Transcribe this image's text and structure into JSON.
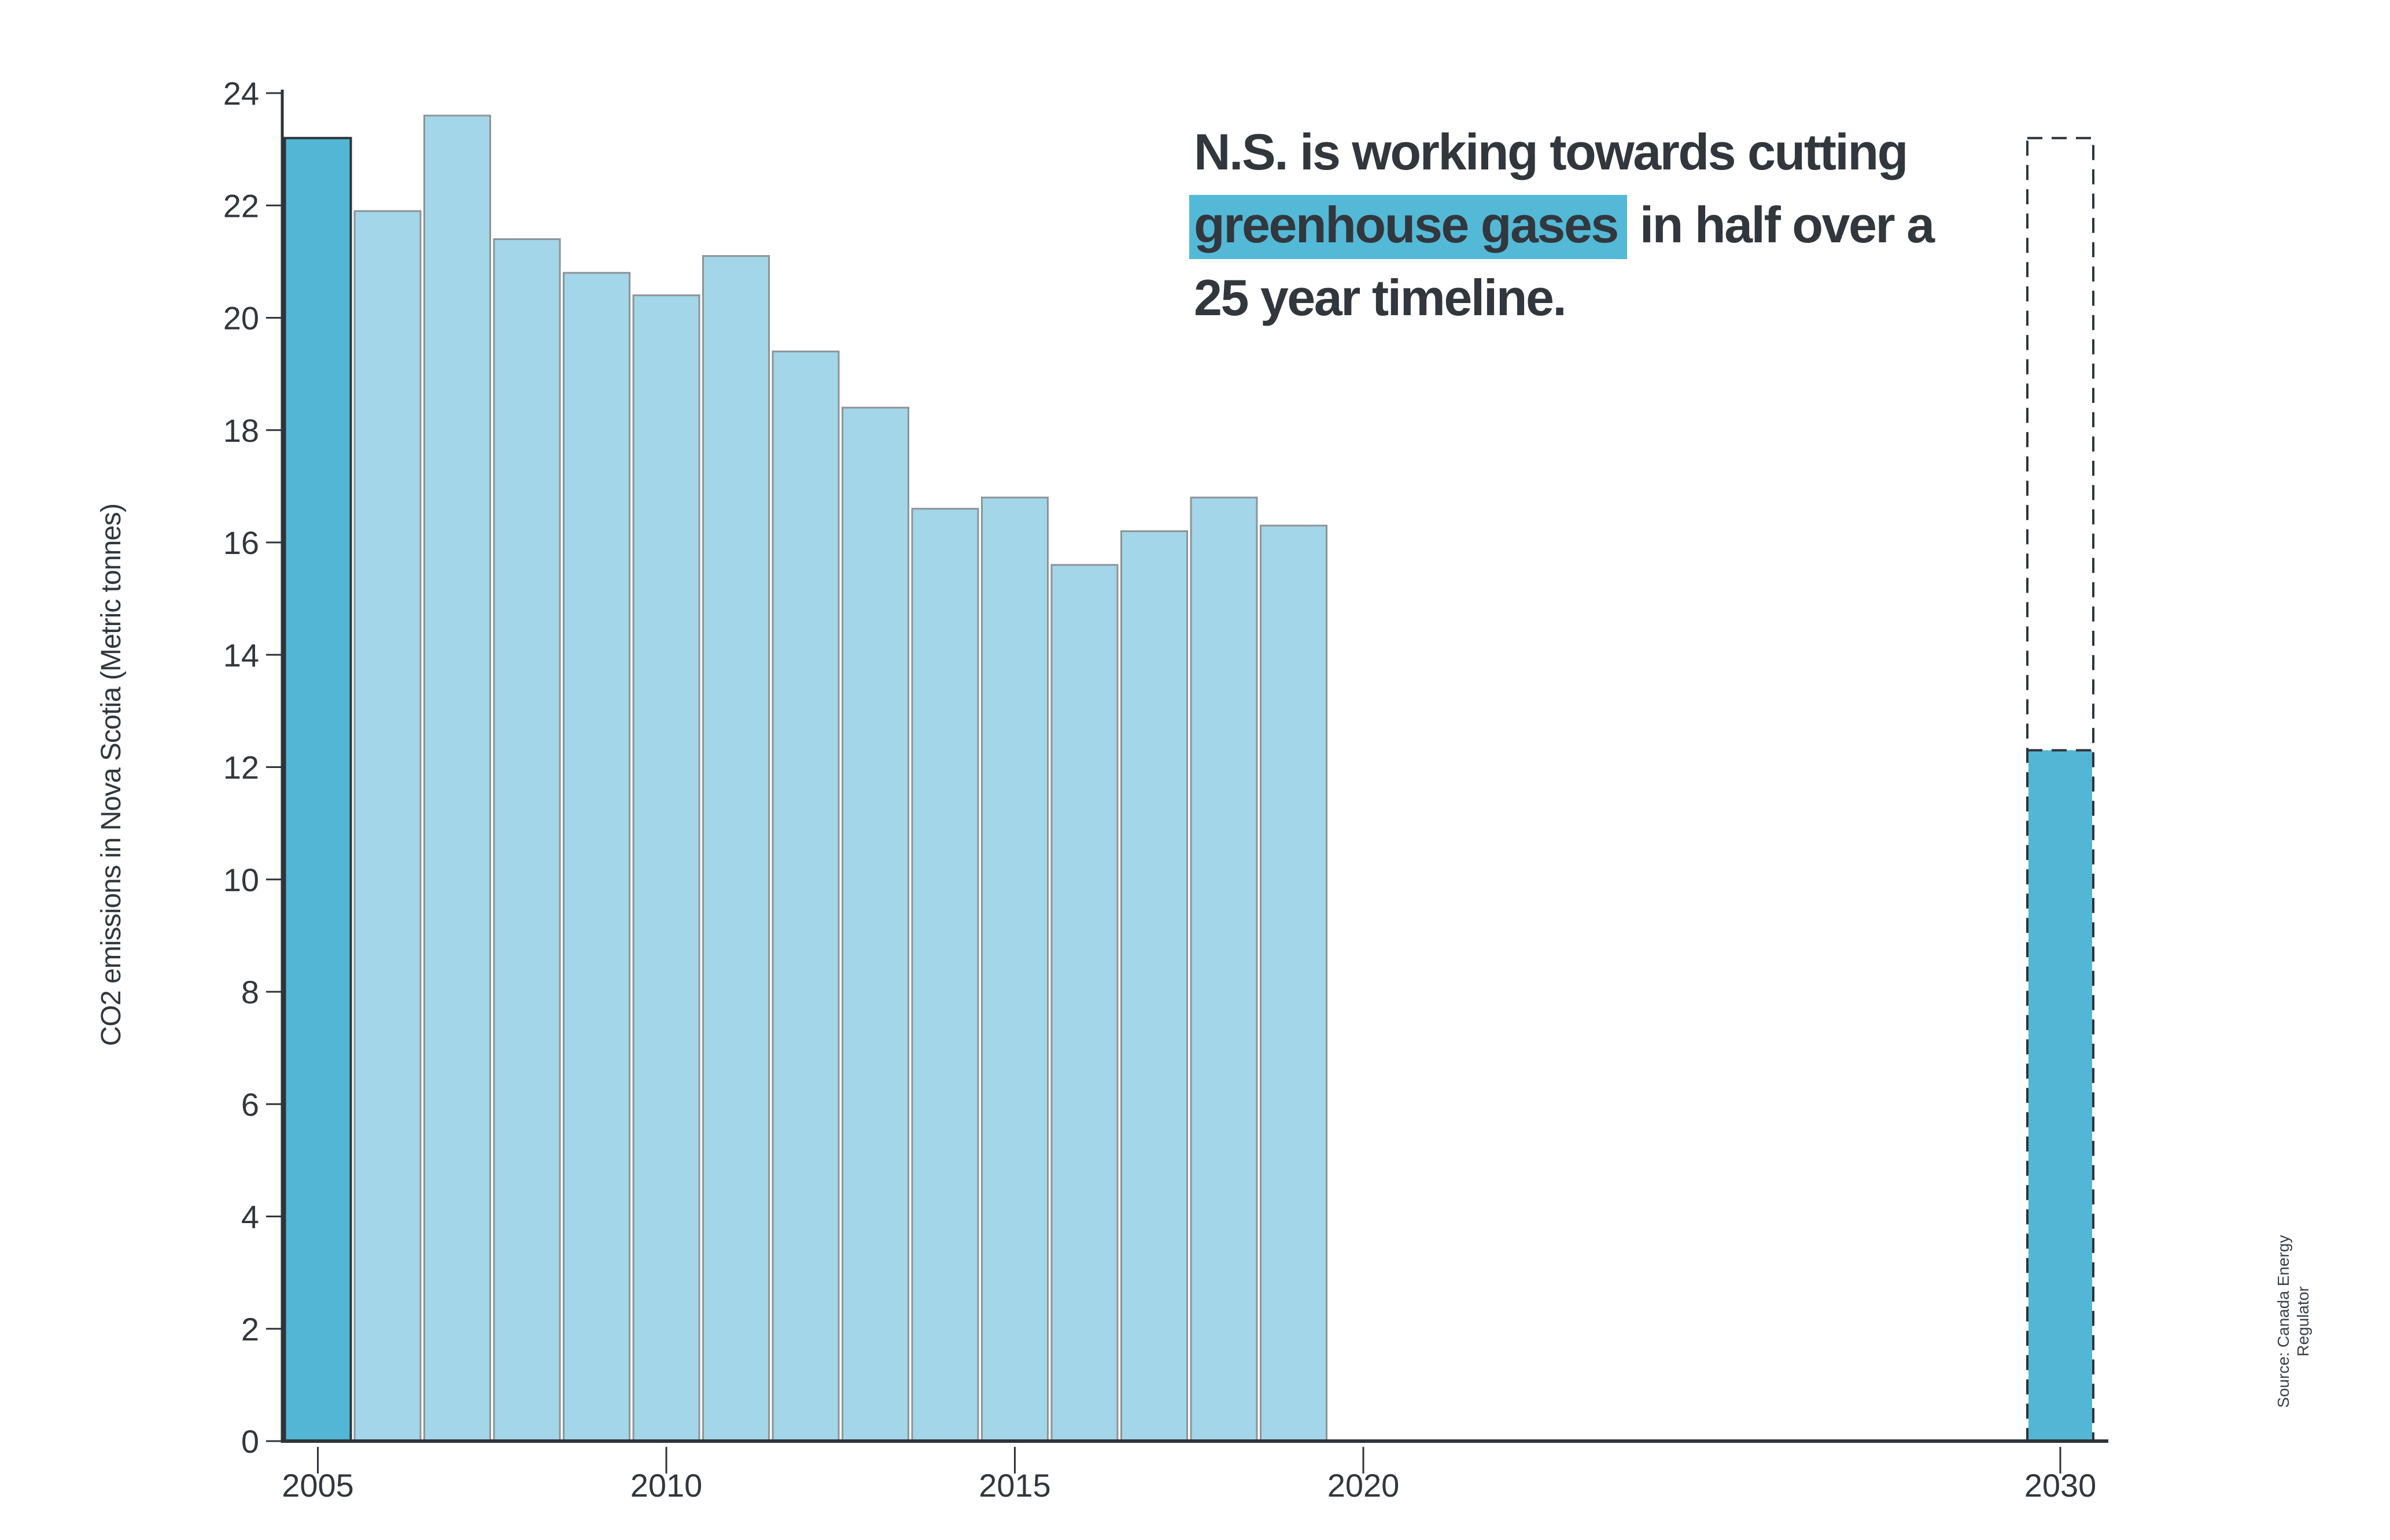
{
  "page": {
    "background_color": "#ffffff",
    "text_color": "#32373d"
  },
  "annotation": {
    "line1": "N.S. is working towards cutting",
    "line2_highlight": "greenhouse gases",
    "line2_rest": " in half over a",
    "line3": "25 year timeline.",
    "highlight_color": "#53b9d7"
  },
  "source_note": {
    "text": "Source: Canada Energy Regulator"
  },
  "chart_data": {
    "type": "bar",
    "title": "",
    "xlabel": "",
    "ylabel": "CO2 emissions in Nova Scotia (Metric tonnes)",
    "ylim": [
      0,
      24
    ],
    "ytick_interval": 2,
    "xticks": [
      2005,
      2010,
      2015,
      2020,
      2030
    ],
    "grid": false,
    "legend": "none",
    "categories": [
      2005,
      2006,
      2007,
      2008,
      2009,
      2010,
      2011,
      2012,
      2013,
      2014,
      2015,
      2016,
      2017,
      2018,
      2019
    ],
    "values": [
      23.2,
      21.9,
      23.6,
      21.4,
      20.8,
      20.4,
      21.1,
      19.4,
      18.4,
      16.6,
      16.8,
      15.6,
      16.2,
      16.8,
      16.3
    ],
    "highlighted_category": 2005,
    "target_bar": {
      "category": 2030,
      "fill_value": 12.3,
      "outline_value": 23.2,
      "border_style": "dashed"
    },
    "colors": {
      "bar_light": "#a2d6e8",
      "bar_emphasis": "#52b6d4",
      "bar_border": "#8e9397",
      "axis": "#2e343a",
      "tick_label": "#32373d"
    }
  }
}
